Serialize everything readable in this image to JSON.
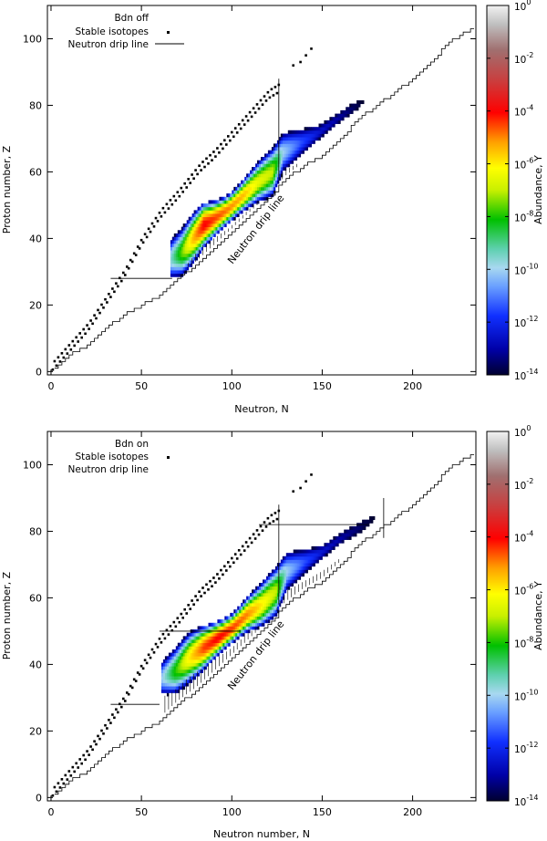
{
  "chart_data": [
    {
      "type": "heatmap",
      "panel": "top",
      "legend": [
        {
          "label": "Bdn off",
          "marker": "none"
        },
        {
          "label": "Stable isotopes",
          "marker": "dots"
        },
        {
          "label": "Neutron drip line",
          "marker": "line"
        }
      ],
      "xlabel": "Neutron, N",
      "ylabel": "Proton number, Z",
      "xlim": [
        -2,
        235
      ],
      "ylim": [
        -1,
        110
      ],
      "xticks": [
        "0",
        "50",
        "100",
        "150",
        "200"
      ],
      "yticks": [
        "0",
        "20",
        "40",
        "60",
        "80",
        "100"
      ],
      "annotation": "Neutron drip line",
      "colorbar_label": "Abundance, Y",
      "colorbar_ticks": [
        {
          "base": "10",
          "exp": "0"
        },
        {
          "base": "10",
          "exp": "-2"
        },
        {
          "base": "10",
          "exp": "-4"
        },
        {
          "base": "10",
          "exp": "-6"
        },
        {
          "base": "10",
          "exp": "-8"
        },
        {
          "base": "10",
          "exp": "-10"
        },
        {
          "base": "10",
          "exp": "-12"
        },
        {
          "base": "10",
          "exp": "-14"
        }
      ],
      "colorbar_range": [
        -14,
        0
      ],
      "abundance_ridge": [
        {
          "n": 66,
          "z": 34,
          "logY": -9.5
        },
        {
          "n": 72,
          "z": 36,
          "logY": -7.5
        },
        {
          "n": 78,
          "z": 40,
          "logY": -5.5
        },
        {
          "n": 84,
          "z": 44,
          "logY": -4.0
        },
        {
          "n": 90,
          "z": 46,
          "logY": -4.5
        },
        {
          "n": 98,
          "z": 49,
          "logY": -5.0
        },
        {
          "n": 106,
          "z": 53,
          "logY": -5.5
        },
        {
          "n": 114,
          "z": 57,
          "logY": -6.5
        },
        {
          "n": 122,
          "z": 60,
          "logY": -7.0
        },
        {
          "n": 128,
          "z": 66,
          "logY": -10.0
        },
        {
          "n": 138,
          "z": 69,
          "logY": -11.5
        },
        {
          "n": 148,
          "z": 72,
          "logY": -12.5
        },
        {
          "n": 158,
          "z": 76,
          "logY": -13.0
        },
        {
          "n": 166,
          "z": 79,
          "logY": -13.5
        },
        {
          "n": 172,
          "z": 81,
          "logY": -14.0
        }
      ],
      "shell_lines": [
        {
          "n0": 33,
          "n1": 67,
          "z": 28
        },
        {
          "n0": 126,
          "n1": 126,
          "z0": 58,
          "z1": 88
        }
      ]
    },
    {
      "type": "heatmap",
      "panel": "bottom",
      "legend": [
        {
          "label": "Bdn on",
          "marker": "none"
        },
        {
          "label": "Stable isotopes",
          "marker": "dots"
        },
        {
          "label": "Neutron drip line",
          "marker": "line"
        }
      ],
      "xlabel": "Neutron number, N",
      "ylabel": "Proton number, Z",
      "xlim": [
        -2,
        235
      ],
      "ylim": [
        -1,
        110
      ],
      "xticks": [
        "0",
        "50",
        "100",
        "150",
        "200"
      ],
      "yticks": [
        "0",
        "20",
        "40",
        "60",
        "80",
        "100"
      ],
      "annotation": "Neutron drip line",
      "colorbar_label": "Abundance, Y",
      "colorbar_ticks": [
        {
          "base": "10",
          "exp": "0"
        },
        {
          "base": "10",
          "exp": "-2"
        },
        {
          "base": "10",
          "exp": "-4"
        },
        {
          "base": "10",
          "exp": "-6"
        },
        {
          "base": "10",
          "exp": "-8"
        },
        {
          "base": "10",
          "exp": "-10"
        },
        {
          "base": "10",
          "exp": "-12"
        },
        {
          "base": "10",
          "exp": "-14"
        }
      ],
      "colorbar_range": [
        -14,
        0
      ],
      "abundance_ridge": [
        {
          "n": 61,
          "z": 36,
          "logY": -10.0
        },
        {
          "n": 68,
          "z": 38,
          "logY": -8.0
        },
        {
          "n": 76,
          "z": 42,
          "logY": -6.0
        },
        {
          "n": 84,
          "z": 45,
          "logY": -4.5
        },
        {
          "n": 92,
          "z": 48,
          "logY": -4.0
        },
        {
          "n": 100,
          "z": 51,
          "logY": -4.5
        },
        {
          "n": 108,
          "z": 55,
          "logY": -5.0
        },
        {
          "n": 116,
          "z": 58,
          "logY": -6.0
        },
        {
          "n": 124,
          "z": 62,
          "logY": -7.0
        },
        {
          "n": 130,
          "z": 68,
          "logY": -10.0
        },
        {
          "n": 140,
          "z": 71,
          "logY": -11.5
        },
        {
          "n": 150,
          "z": 74,
          "logY": -12.5
        },
        {
          "n": 160,
          "z": 78,
          "logY": -13.0
        },
        {
          "n": 170,
          "z": 81,
          "logY": -13.5
        },
        {
          "n": 178,
          "z": 84,
          "logY": -14.0
        }
      ],
      "shell_lines": [
        {
          "n0": 33,
          "n1": 60,
          "z": 28
        },
        {
          "n0": 60,
          "n1": 105,
          "z": 50
        },
        {
          "n0": 115,
          "n1": 175,
          "z": 82
        },
        {
          "n0": 126,
          "n1": 126,
          "z0": 58,
          "z1": 88
        },
        {
          "n0": 184,
          "n1": 184,
          "z0": 78,
          "z1": 90
        }
      ]
    }
  ]
}
